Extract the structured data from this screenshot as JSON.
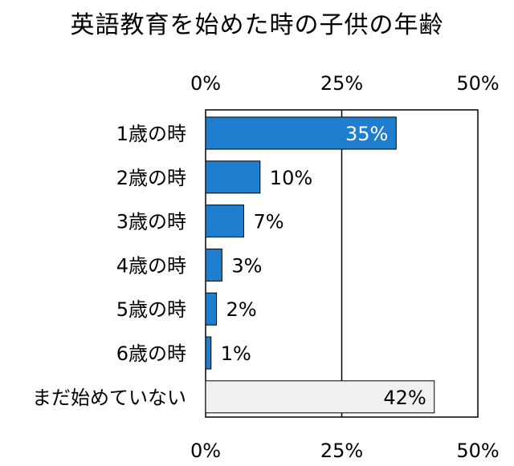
{
  "chart_data": {
    "type": "bar",
    "orientation": "horizontal",
    "title": "英語教育を始めた時の子供の年齢",
    "categories": [
      "1歳の時",
      "2歳の時",
      "3歳の時",
      "4歳の時",
      "5歳の時",
      "6歳の時",
      "まだ始めていない"
    ],
    "values": [
      35,
      10,
      7,
      3,
      2,
      1,
      42
    ],
    "value_labels": [
      "35%",
      "10%",
      "7%",
      "3%",
      "2%",
      "1%",
      "42%"
    ],
    "x_ticks": [
      "0%",
      "25%",
      "50%"
    ],
    "xlim": [
      0,
      50
    ],
    "tick_axis_positions": [
      "top",
      "bottom"
    ],
    "grid": true,
    "bar_colors": [
      "#1f7fce",
      "#1f7fce",
      "#1f7fce",
      "#1f7fce",
      "#1f7fce",
      "#1f7fce",
      "#f0f0f0"
    ],
    "label_colors": [
      "#ffffff",
      "#000000",
      "#000000",
      "#000000",
      "#000000",
      "#000000",
      "#000000"
    ],
    "label_inside": [
      true,
      false,
      false,
      false,
      false,
      false,
      true
    ]
  }
}
